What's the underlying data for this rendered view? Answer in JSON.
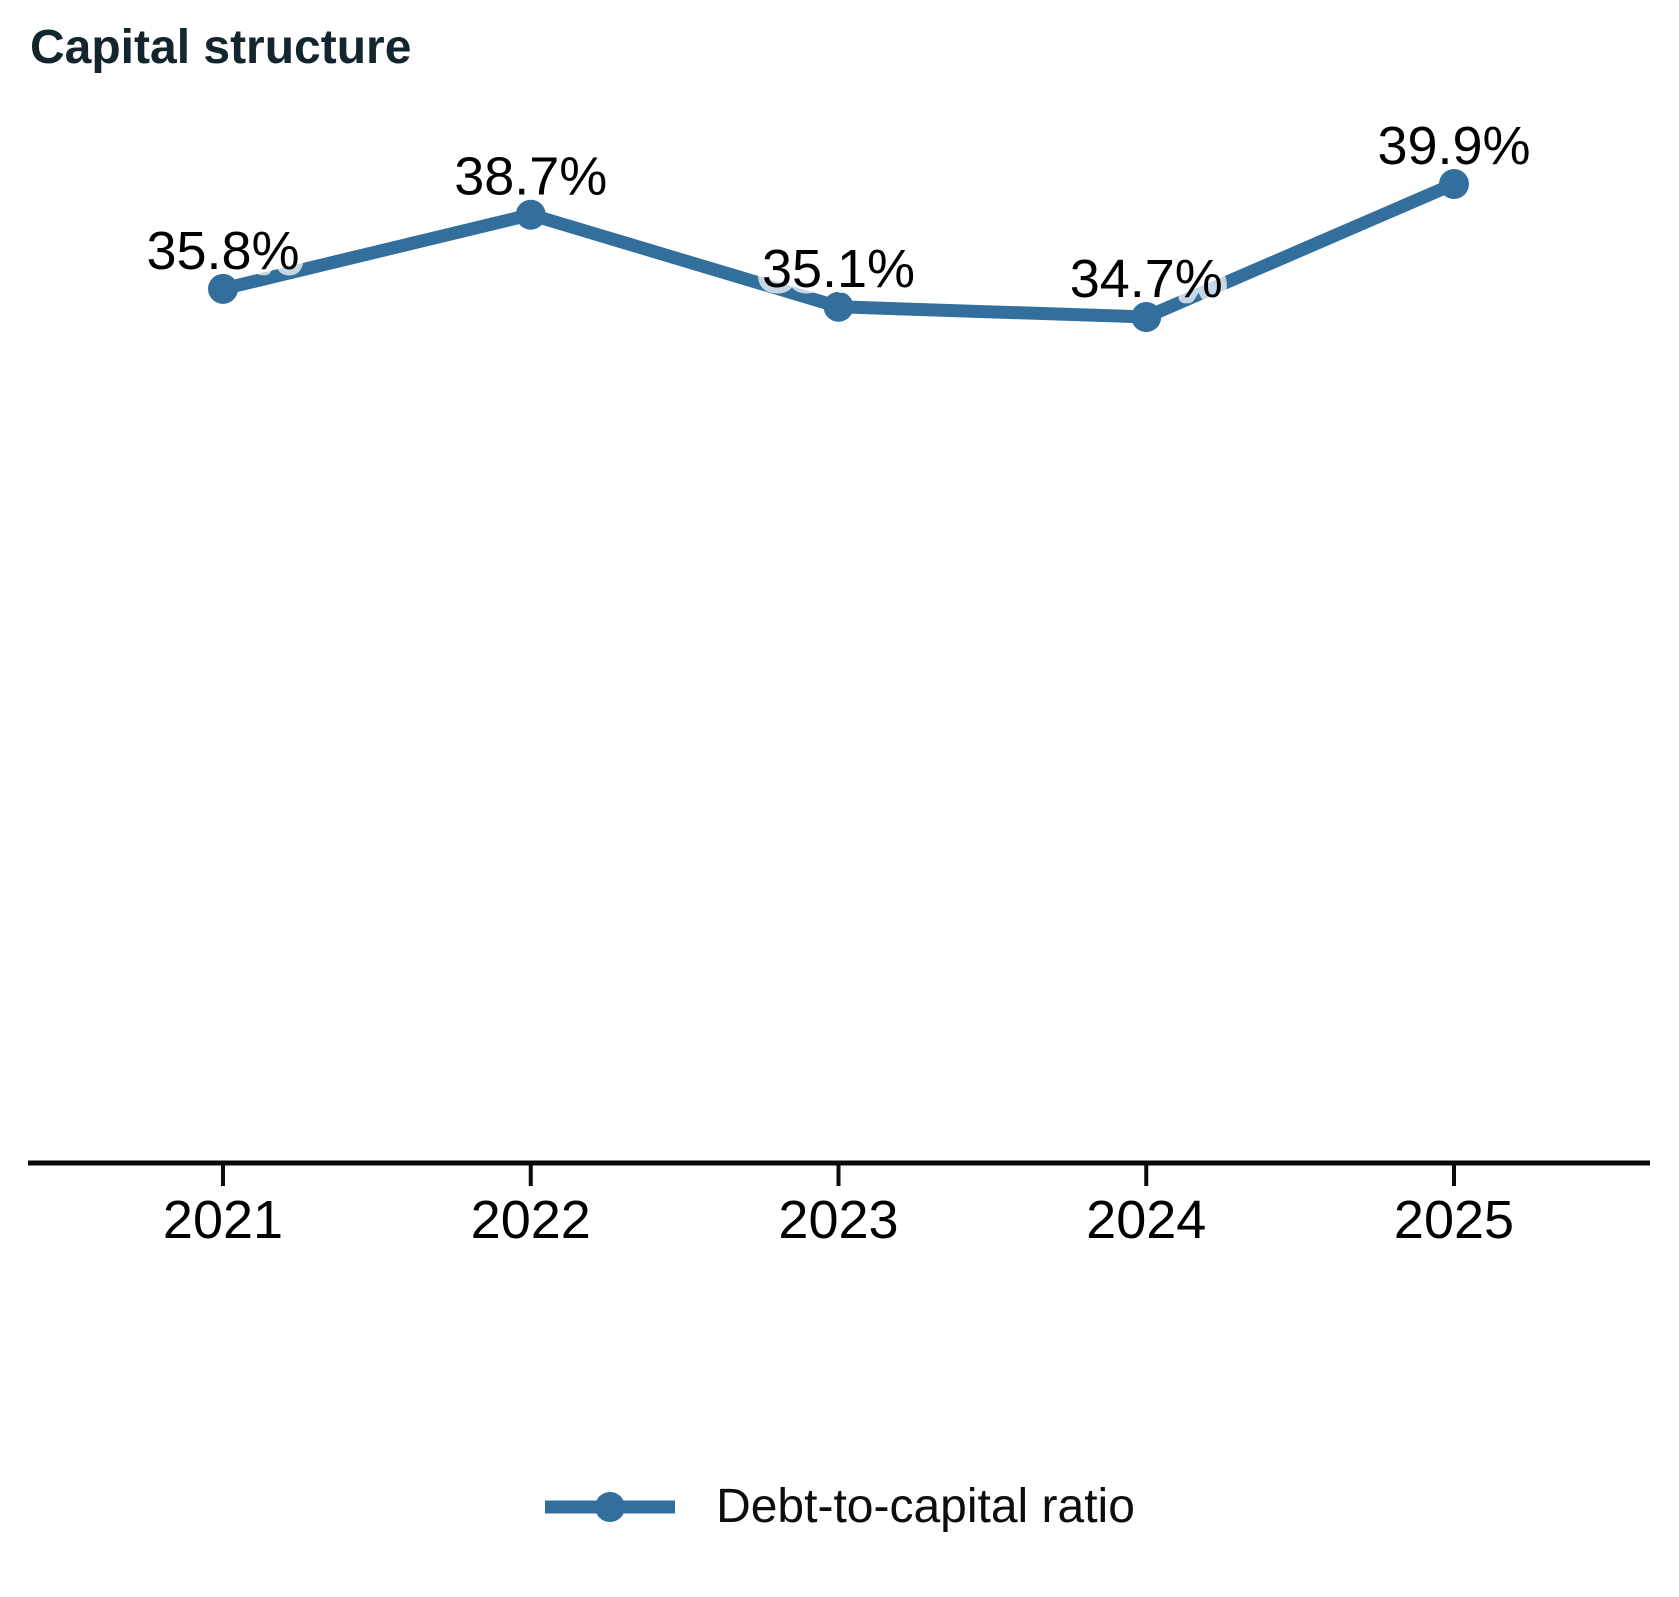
{
  "header": {
    "title": "Capital structure"
  },
  "chart_data": {
    "type": "line",
    "title": "Capital structure",
    "categories": [
      "2021",
      "2022",
      "2023",
      "2024",
      "2025"
    ],
    "series": [
      {
        "name": "Debt-to-capital ratio",
        "values": [
          35.8,
          38.7,
          35.1,
          34.7,
          39.9
        ],
        "data_labels": [
          "35.8%",
          "38.7%",
          "35.1%",
          "34.7%",
          "39.9%"
        ],
        "color": "#336f9c"
      }
    ],
    "xlabel": "",
    "ylabel": "",
    "y_axis_visible": false,
    "approx_value_range": [
      34.7,
      39.9
    ],
    "grid": false,
    "legend_position": "bottom"
  },
  "legend": {
    "label": "Debt-to-capital ratio"
  },
  "colors": {
    "line": "#336f9c",
    "marker": "#336f9c",
    "label_text": "#000000",
    "label_halo": "rgba(255,255,255,0.72)",
    "title_text": "#13262e",
    "axis": "#0a0a0a",
    "tick_text": "#000000"
  }
}
